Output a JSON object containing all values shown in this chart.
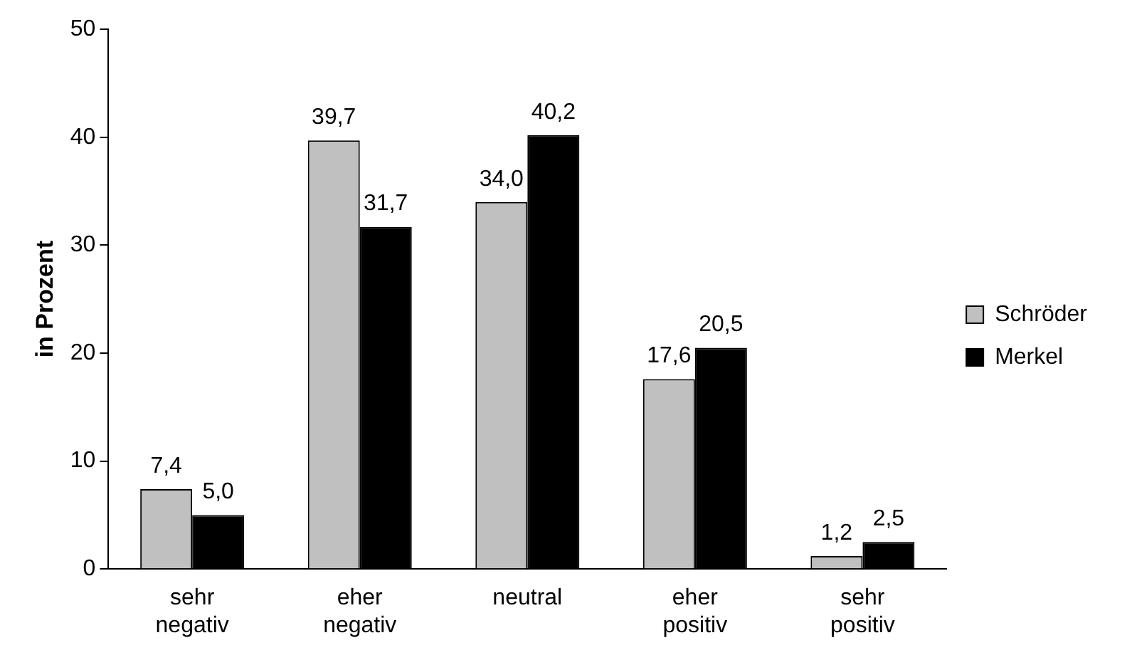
{
  "chart_data": {
    "type": "bar",
    "ylabel": "in Prozent",
    "categories": [
      "sehr negativ",
      "eher negativ",
      "neutral",
      "eher positiv",
      "sehr positiv"
    ],
    "series": [
      {
        "name": "Schröder",
        "color": "#c0c0c0",
        "values": [
          7.4,
          39.7,
          34.0,
          17.6,
          1.2
        ],
        "value_labels": [
          "7,4",
          "39,7",
          "34,0",
          "17,6",
          "1,2"
        ]
      },
      {
        "name": "Merkel",
        "color": "#000000",
        "values": [
          5.0,
          31.7,
          40.2,
          20.5,
          2.5
        ],
        "value_labels": [
          "5,0",
          "31,7",
          "40,2",
          "20,5",
          "2,5"
        ]
      }
    ],
    "ylim": [
      0,
      50
    ],
    "yticks": [
      0,
      10,
      20,
      30,
      40,
      50
    ],
    "grid": false,
    "legend": "right"
  }
}
